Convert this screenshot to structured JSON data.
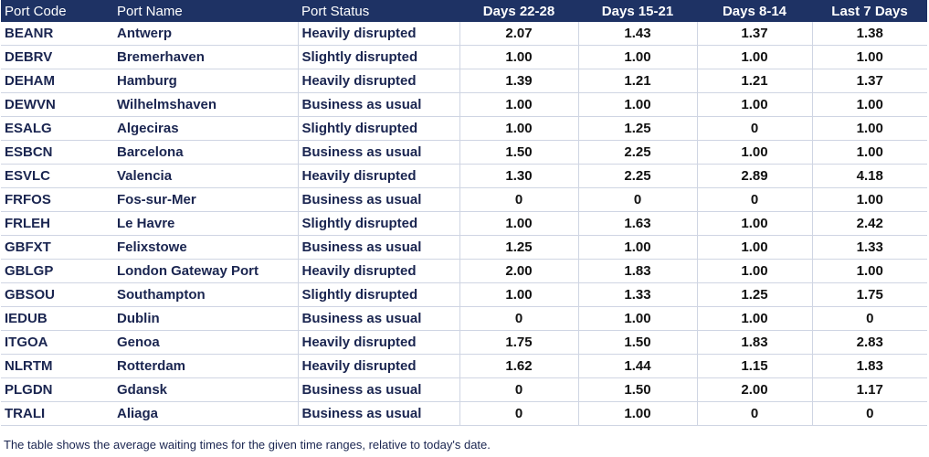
{
  "chart_data": {
    "type": "table",
    "columns": [
      "Port Code",
      "Port Name",
      "Port Status",
      "Days 22-28",
      "Days 15-21",
      "Days 8-14",
      "Last 7 Days"
    ],
    "rows": [
      [
        "BEANR",
        "Antwerp",
        "Heavily disrupted",
        "2.07",
        "1.43",
        "1.37",
        "1.38"
      ],
      [
        "DEBRV",
        "Bremerhaven",
        "Slightly disrupted",
        "1.00",
        "1.00",
        "1.00",
        "1.00"
      ],
      [
        "DEHAM",
        "Hamburg",
        "Heavily disrupted",
        "1.39",
        "1.21",
        "1.21",
        "1.37"
      ],
      [
        "DEWVN",
        "Wilhelmshaven",
        "Business as usual",
        "1.00",
        "1.00",
        "1.00",
        "1.00"
      ],
      [
        "ESALG",
        "Algeciras",
        "Slightly disrupted",
        "1.00",
        "1.25",
        "0",
        "1.00"
      ],
      [
        "ESBCN",
        "Barcelona",
        "Business as usual",
        "1.50",
        "2.25",
        "1.00",
        "1.00"
      ],
      [
        "ESVLC",
        "Valencia",
        "Heavily disrupted",
        "1.30",
        "2.25",
        "2.89",
        "4.18"
      ],
      [
        "FRFOS",
        "Fos-sur-Mer",
        "Business as usual",
        "0",
        "0",
        "0",
        "1.00"
      ],
      [
        "FRLEH",
        "Le Havre",
        "Slightly disrupted",
        "1.00",
        "1.63",
        "1.00",
        "2.42"
      ],
      [
        "GBFXT",
        "Felixstowe",
        "Business as usual",
        "1.25",
        "1.00",
        "1.00",
        "1.33"
      ],
      [
        "GBLGP",
        "London Gateway Port",
        "Heavily disrupted",
        "2.00",
        "1.83",
        "1.00",
        "1.00"
      ],
      [
        "GBSOU",
        "Southampton",
        "Slightly disrupted",
        "1.00",
        "1.33",
        "1.25",
        "1.75"
      ],
      [
        "IEDUB",
        "Dublin",
        "Business as usual",
        "0",
        "1.00",
        "1.00",
        "0"
      ],
      [
        "ITGOA",
        "Genoa",
        "Heavily disrupted",
        "1.75",
        "1.50",
        "1.83",
        "2.83"
      ],
      [
        "NLRTM",
        "Rotterdam",
        "Heavily disrupted",
        "1.62",
        "1.44",
        "1.15",
        "1.83"
      ],
      [
        "PLGDN",
        "Gdansk",
        "Business as usual",
        "0",
        "1.50",
        "2.00",
        "1.17"
      ],
      [
        "TRALI",
        "Aliaga",
        "Business as usual",
        "0",
        "1.00",
        "0",
        "0"
      ]
    ]
  },
  "footnote": "The table shows the average waiting times for the given time ranges, relative to today's date.",
  "colors": {
    "header_bg": "#1e3264",
    "header_text": "#ffffff",
    "body_text": "#1a2550",
    "grid": "#cfd5e3"
  }
}
